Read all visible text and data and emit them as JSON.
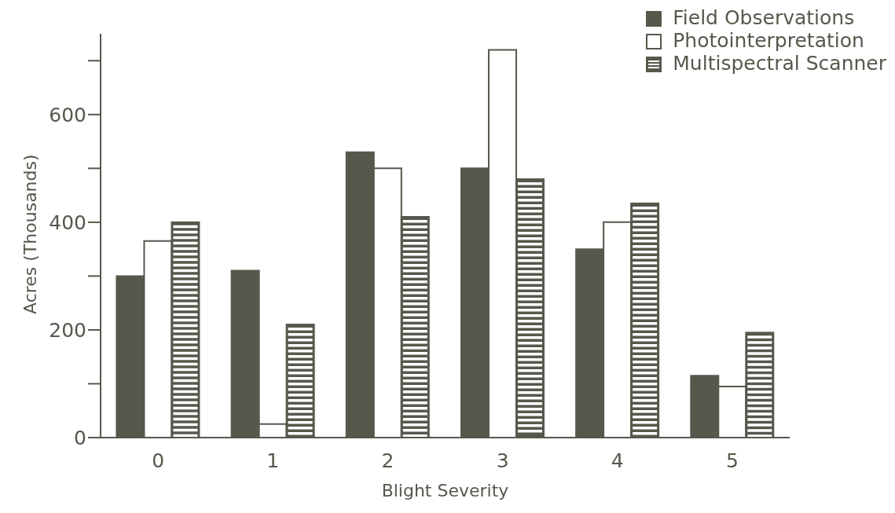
{
  "chart_data": {
    "type": "bar",
    "xlabel": "Blight Severity",
    "ylabel": "Acres (Thousands)",
    "categories": [
      "0",
      "1",
      "2",
      "3",
      "4",
      "5"
    ],
    "series": [
      {
        "name": "Field Observations",
        "color": "#58574c",
        "values": [
          300,
          310,
          530,
          500,
          350,
          115
        ]
      },
      {
        "name": "Photointerpretation",
        "color": "#ffffff",
        "values": [
          365,
          25,
          500,
          720,
          400,
          95
        ]
      },
      {
        "name": "Multispectral Scanner",
        "color": "#58574c",
        "values": [
          400,
          210,
          410,
          480,
          435,
          195
        ]
      }
    ],
    "ylim": [
      0,
      750
    ],
    "yticks": [
      0,
      {
        "value": 100,
        "label": null
      },
      200,
      {
        "value": 300,
        "label": null
      },
      400,
      {
        "value": 500,
        "label": null
      },
      600,
      {
        "value": 700,
        "label": null
      }
    ],
    "grid": false,
    "legend": "top right"
  }
}
